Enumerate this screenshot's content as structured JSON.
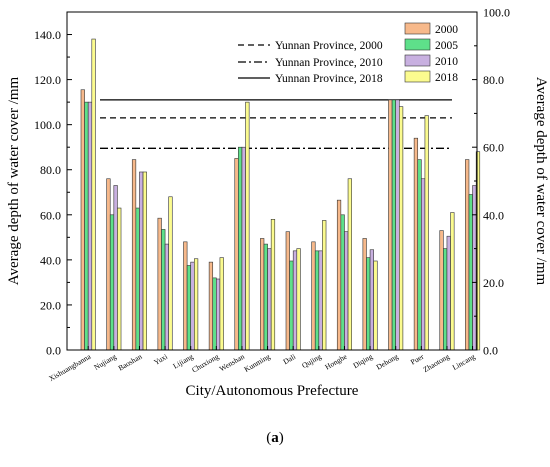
{
  "caption": {
    "open": "(",
    "letter": "a",
    "close": ")"
  },
  "chart_data": {
    "type": "bar",
    "title": "",
    "xlabel": "City/Autonomous Prefecture",
    "ylabel": "Average depth of water cover /mm",
    "ylabel_right": "Average depth of water cover /mm",
    "ylim": [
      0,
      150
    ],
    "ylim_right": [
      0,
      100
    ],
    "yticks": [
      "0.0",
      "20.0",
      "40.0",
      "60.0",
      "80.0",
      "100.0",
      "120.0",
      "140.0"
    ],
    "yticks_right": [
      "0.0",
      "20.0",
      "40.0",
      "60.0",
      "80.0",
      "100.0"
    ],
    "grid": false,
    "legend_position": "top-right",
    "categories": [
      "Xishuangbanna",
      "Nujiang",
      "Baoshan",
      "Yuxi",
      "Lijiang",
      "Chuxiong",
      "Wenshan",
      "Kunming",
      "Dali",
      "Qujing",
      "Honghe",
      "Diqing",
      "Dehong",
      "Puer",
      "Zhaotong",
      "Lincang"
    ],
    "series": [
      {
        "name": "2000",
        "color": "#f7b98b",
        "values": [
          115.5,
          76.0,
          84.5,
          58.5,
          48.0,
          39.0,
          85.0,
          49.5,
          52.5,
          48.0,
          66.5,
          49.5,
          111.0,
          94.0,
          53.0,
          84.5
        ]
      },
      {
        "name": "2005",
        "color": "#5ee08a",
        "values": [
          110.0,
          60.0,
          63.0,
          53.5,
          37.5,
          32.0,
          90.0,
          47.0,
          39.5,
          44.0,
          60.0,
          41.0,
          111.0,
          84.5,
          45.0,
          69.0
        ]
      },
      {
        "name": "2010",
        "color": "#c8b0e0",
        "values": [
          110.0,
          73.0,
          79.0,
          47.0,
          39.0,
          31.5,
          90.0,
          45.0,
          44.0,
          44.0,
          52.5,
          44.5,
          111.0,
          76.0,
          50.5,
          73.0
        ]
      },
      {
        "name": "2018",
        "color": "#fbfb8f",
        "values": [
          138.0,
          63.0,
          79.0,
          68.0,
          40.5,
          41.0,
          110.0,
          58.0,
          45.0,
          57.5,
          76.0,
          39.5,
          108.0,
          104.0,
          61.0,
          88.0
        ]
      }
    ],
    "reference_lines": [
      {
        "name": "Yunnan Province, 2000",
        "style": "dashed",
        "value": 103.0
      },
      {
        "name": "Yunnan Province, 2010",
        "style": "dash-dot",
        "value": 89.5
      },
      {
        "name": "Yunnan Province, 2018",
        "style": "solid",
        "value": 111.0
      }
    ]
  }
}
